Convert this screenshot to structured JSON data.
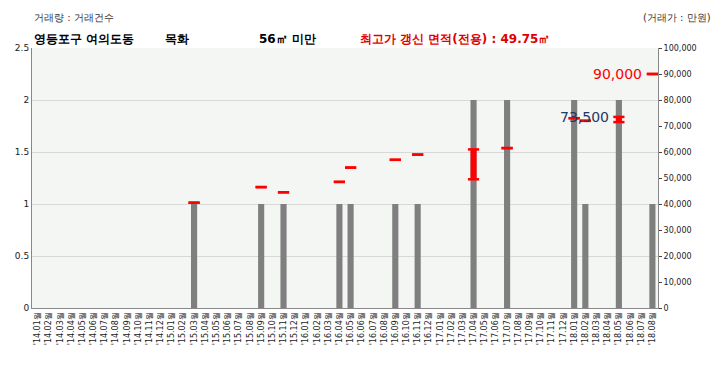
{
  "chart_data": {
    "type": "bar",
    "title": "영등포구 여의도동",
    "subtitle": [
      "목화",
      "56㎡ 미만"
    ],
    "note": "최고가 갱신 면적(전용) : 49.75㎡",
    "ylabel": "거래량 : 거래건수",
    "y2label": "(거래가 : 만원)",
    "categories": [
      "'14.01월",
      "'14.02월",
      "'14.03월",
      "'14.04월",
      "'14.05월",
      "'14.06월",
      "'14.07월",
      "'14.08월",
      "'14.09월",
      "'14.10월",
      "'14.11월",
      "'14.12월",
      "'15.01월",
      "'15.02월",
      "'15.03월",
      "'15.04월",
      "'15.05월",
      "'15.06월",
      "'15.07월",
      "'15.08월",
      "'15.09월",
      "'15.10월",
      "'15.11월",
      "'15.12월",
      "'16.01월",
      "'16.02월",
      "'16.03월",
      "'16.04월",
      "'16.05월",
      "'16.06월",
      "'16.07월",
      "'16.08월",
      "'16.09월",
      "'16.10월",
      "'16.11월",
      "'16.12월",
      "'17.01월",
      "'17.02월",
      "'17.03월",
      "'17.04월",
      "'17.05월",
      "'17.06월",
      "'17.07월",
      "'17.08월",
      "'17.09월",
      "'17.10월",
      "'17.11월",
      "'17.12월",
      "'18.01월",
      "'18.02월",
      "'18.03월",
      "'18.04월",
      "'18.05월",
      "'18.06월",
      "'18.07월",
      "'18.08월"
    ],
    "series": [
      {
        "type": "bar",
        "color": "#7f7f7f",
        "values": [
          0,
          0,
          0,
          0,
          0,
          0,
          0,
          0,
          0,
          0,
          0,
          0,
          0,
          0,
          1,
          0,
          0,
          0,
          0,
          0,
          1,
          0,
          1,
          0,
          0,
          0,
          0,
          1,
          1,
          0,
          0,
          0,
          1,
          0,
          1,
          0,
          0,
          0,
          0,
          2,
          0,
          0,
          2,
          0,
          0,
          0,
          0,
          0,
          2,
          1,
          0,
          0,
          2,
          0,
          0,
          1
        ]
      },
      {
        "type": "range",
        "axis": "y2",
        "color": "#ff0000",
        "marker": "dash",
        "low": [
          null,
          null,
          null,
          null,
          null,
          null,
          null,
          null,
          null,
          null,
          null,
          null,
          null,
          null,
          40500,
          null,
          null,
          null,
          null,
          null,
          46500,
          null,
          44500,
          null,
          null,
          null,
          null,
          48500,
          54000,
          null,
          null,
          null,
          57000,
          null,
          59000,
          null,
          null,
          null,
          null,
          49500,
          null,
          null,
          61500,
          null,
          null,
          null,
          null,
          null,
          73000,
          72000,
          null,
          null,
          71500,
          null,
          null,
          90000
        ],
        "high": [
          null,
          null,
          null,
          null,
          null,
          null,
          null,
          null,
          null,
          null,
          null,
          null,
          null,
          null,
          40500,
          null,
          null,
          null,
          null,
          null,
          46500,
          null,
          44500,
          null,
          null,
          null,
          null,
          48500,
          54000,
          null,
          null,
          null,
          57000,
          null,
          59000,
          null,
          null,
          null,
          null,
          61000,
          null,
          null,
          61500,
          null,
          null,
          null,
          null,
          null,
          73000,
          72000,
          null,
          null,
          73500,
          null,
          null,
          90000
        ]
      }
    ],
    "annotations": [
      {
        "text": "90,000",
        "x": "'18.08월",
        "y": 90000,
        "color": "#ff0000"
      },
      {
        "text": "73,500",
        "x": "'18.05월",
        "y": 73500,
        "color": "#1f3864"
      }
    ],
    "ylim": [
      0,
      2.5
    ],
    "yticks": [
      0,
      0.5,
      1,
      1.5,
      2,
      2.5
    ],
    "y2lim": [
      0,
      100000
    ],
    "y2ticks": [
      {
        "value": 0,
        "label": "0"
      },
      {
        "value": 10000,
        "label": "10,000"
      },
      {
        "value": 20000,
        "label": "20,000"
      },
      {
        "value": 30000,
        "label": "30,000"
      },
      {
        "value": 40000,
        "label": "40,000"
      },
      {
        "value": 50000,
        "label": "50,000"
      },
      {
        "value": 60000,
        "label": "60,000"
      },
      {
        "value": 70000,
        "label": "70,000"
      },
      {
        "value": 80000,
        "label": "80,000"
      },
      {
        "value": 90000,
        "label": "90,000"
      },
      {
        "value": 100000,
        "label": "100,000"
      }
    ],
    "grid": true
  }
}
